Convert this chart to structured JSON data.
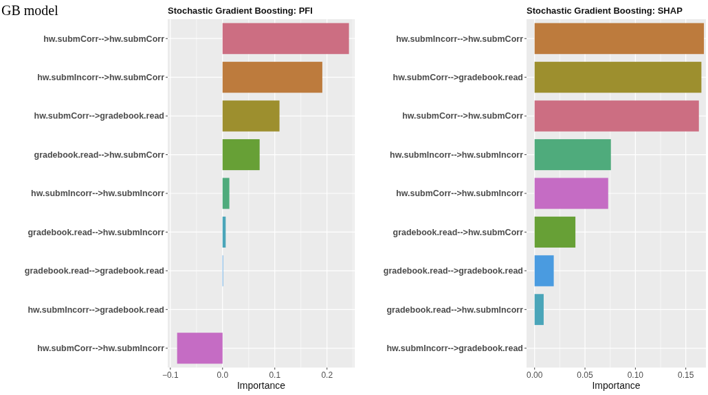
{
  "chart_data": [
    {
      "type": "bar",
      "orientation": "horizontal",
      "title": "Stochastic Gradient Boosting: PFI",
      "xlabel": "Importance",
      "annotations": [
        "GB model"
      ],
      "categories": [
        "hw.submCorr-->hw.submCorr",
        "hw.submIncorr-->hw.submCorr",
        "hw.submCorr-->gradebook.read",
        "gradebook.read-->hw.submCorr",
        "hw.submIncorr-->hw.submIncorr",
        "gradebook.read-->hw.submIncorr",
        "gradebook.read-->gradebook.read",
        "hw.submIncorr-->gradebook.read",
        "hw.submCorr-->hw.submIncorr"
      ],
      "values": [
        0.242,
        0.191,
        0.109,
        0.071,
        0.013,
        0.006,
        0.001,
        0,
        -0.087
      ],
      "colors": [
        "#cc6e82",
        "#bd7b3d",
        "#9d8f2e",
        "#67a036",
        "#4fab7c",
        "#4aa5b9",
        "#4a9be0",
        "#9a7be0",
        "#c56cc4"
      ],
      "xlim": [
        -0.105,
        0.253
      ],
      "xticks": [
        {
          "value": -0.1,
          "label": "−0.1"
        },
        {
          "value": 0,
          "label": "0.0"
        },
        0.1,
        0.2
      ],
      "grid": true
    },
    {
      "type": "bar",
      "orientation": "horizontal",
      "title": "Stochastic Gradient Boosting: SHAP",
      "xlabel": "Importance",
      "categories": [
        "hw.submIncorr-->hw.submCorr",
        "hw.submCorr-->gradebook.read",
        "hw.submCorr-->hw.submCorr",
        "hw.submIncorr-->hw.submIncorr",
        "hw.submCorr-->hw.submIncorr",
        "gradebook.read-->hw.submCorr",
        "gradebook.read-->gradebook.read",
        "gradebook.read-->hw.submIncorr",
        "hw.submIncorr-->gradebook.read"
      ],
      "values": [
        0.168,
        0.1655,
        0.163,
        0.0757,
        0.073,
        0.0405,
        0.019,
        0.009,
        0
      ],
      "colors": [
        "#bd7b3d",
        "#9d8f2e",
        "#cc6e82",
        "#4fab7c",
        "#c56cc4",
        "#67a036",
        "#4a9be0",
        "#4aa5b9",
        "#9a7be0"
      ],
      "xlim": [
        -0.008,
        0.17
      ],
      "xticks": [
        {
          "value": 0,
          "label": "0.00"
        },
        {
          "value": 0.05,
          "label": "0.05"
        },
        {
          "value": 0.1,
          "label": "0.10"
        },
        {
          "value": 0.15,
          "label": "0.15"
        }
      ],
      "grid": true
    }
  ]
}
